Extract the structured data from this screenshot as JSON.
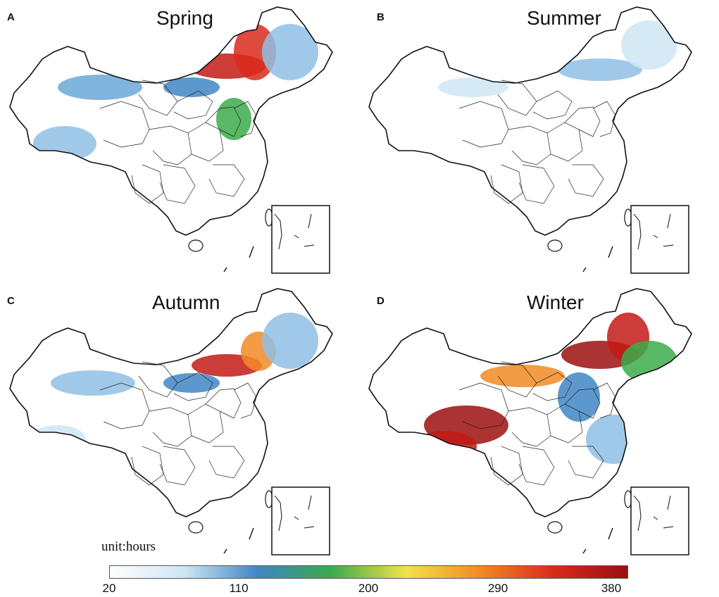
{
  "panels": [
    {
      "letter": "A",
      "season": "Spring",
      "intensity": "high"
    },
    {
      "letter": "B",
      "season": "Summer",
      "intensity": "low"
    },
    {
      "letter": "C",
      "season": "Autumn",
      "intensity": "medium"
    },
    {
      "letter": "D",
      "season": "Winter",
      "intensity": "very-high"
    }
  ],
  "legend": {
    "unit_label": "unit:hours",
    "ticks": [
      "20",
      "110",
      "200",
      "290",
      "380"
    ],
    "colors": [
      "#ffffff",
      "#cfe6f5",
      "#3f86c4",
      "#3bab4a",
      "#f3e24a",
      "#f18b25",
      "#d92a1c",
      "#9c0f10"
    ]
  }
}
